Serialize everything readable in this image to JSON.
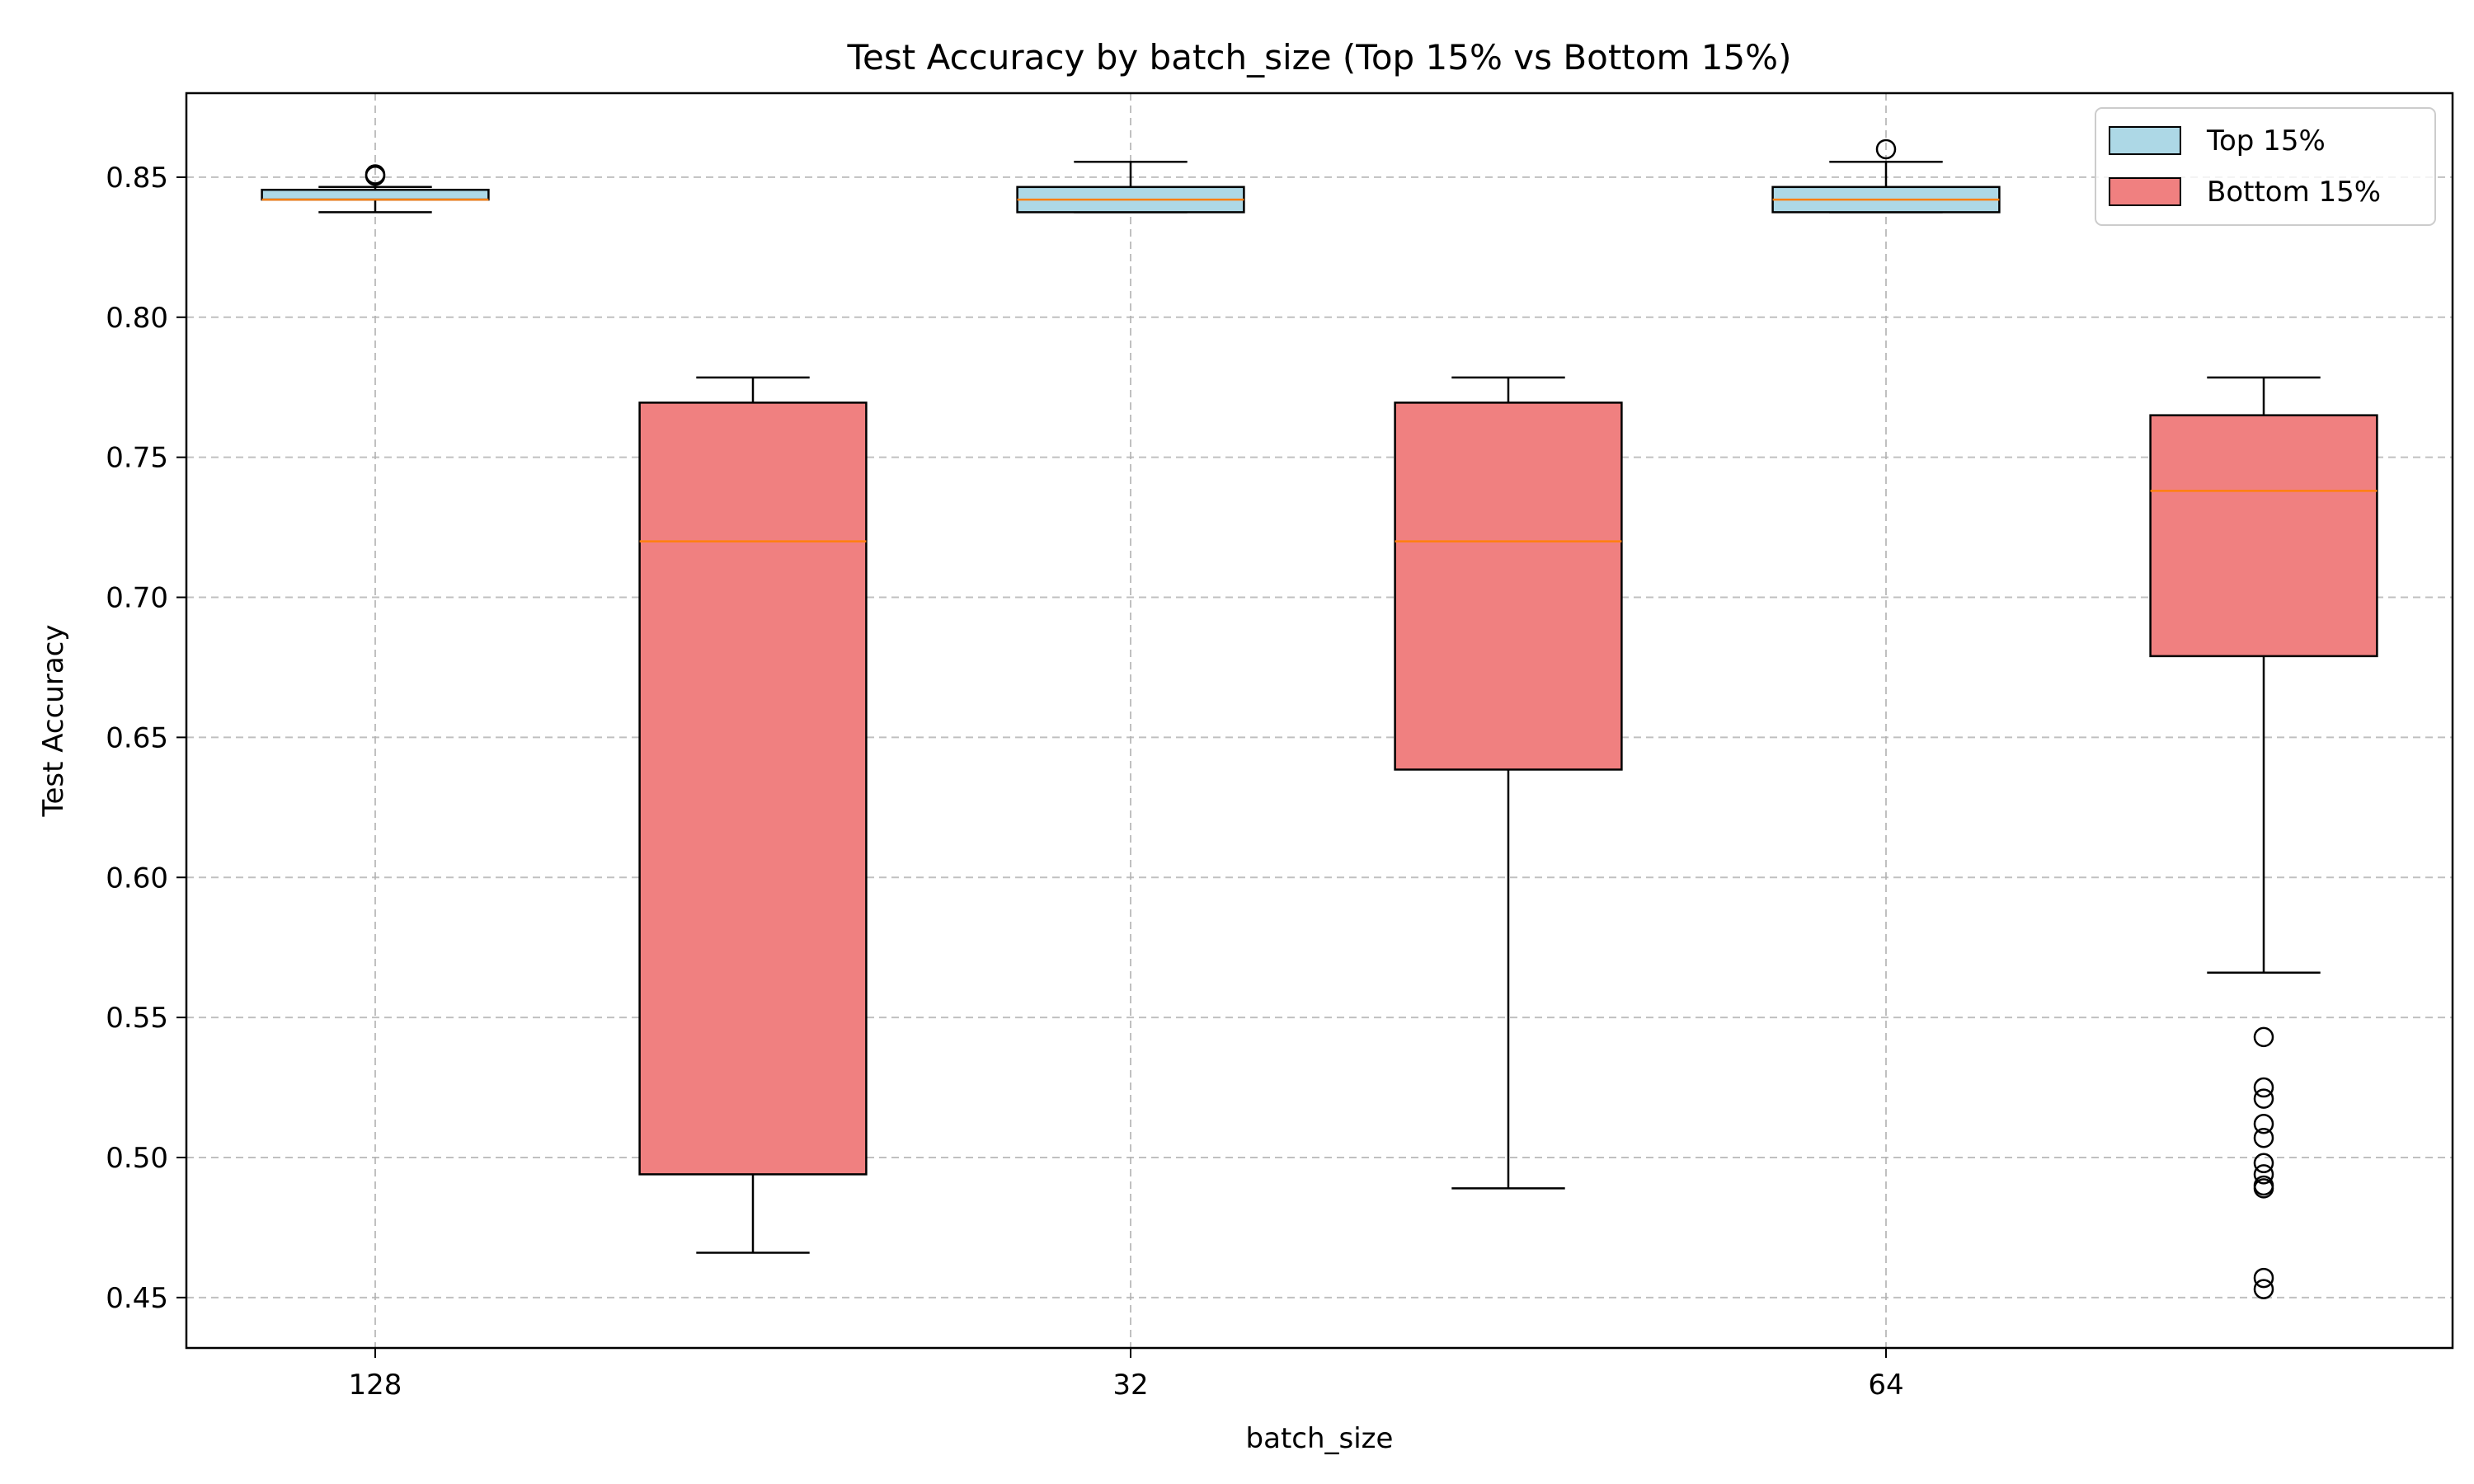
{
  "chart_data": {
    "type": "boxplot",
    "title": "Test Accuracy by batch_size (Top 15% vs Bottom 15%)",
    "xlabel": "batch_size",
    "ylabel": "Test Accuracy",
    "ylim": [
      0.432,
      0.88
    ],
    "yticks": [
      "0.45",
      "0.50",
      "0.55",
      "0.60",
      "0.65",
      "0.70",
      "0.75",
      "0.80",
      "0.85"
    ],
    "x_positions": [
      1,
      1.5,
      2,
      2.5,
      3,
      3.5
    ],
    "xlim": [
      0.75,
      3.75
    ],
    "x_tick_positions": [
      1,
      2,
      3
    ],
    "categories": [
      "128",
      "32",
      "64"
    ],
    "grid": true,
    "legend_position": "top-right",
    "series": [
      {
        "name": "Top 15%",
        "color": "#add8e6",
        "boxes": [
          {
            "category": "128",
            "whislo": 0.8375,
            "q1": 0.842,
            "median": 0.842,
            "q3": 0.8455,
            "whishi": 0.8465,
            "fliers": [
              0.851,
              0.8505
            ]
          },
          {
            "category": "32",
            "whislo": 0.8375,
            "q1": 0.8375,
            "median": 0.842,
            "q3": 0.8465,
            "whishi": 0.8555,
            "fliers": []
          },
          {
            "category": "64",
            "whislo": 0.8375,
            "q1": 0.8375,
            "median": 0.842,
            "q3": 0.8465,
            "whishi": 0.8555,
            "fliers": [
              0.86
            ]
          }
        ]
      },
      {
        "name": "Bottom 15%",
        "color": "#f08080",
        "boxes": [
          {
            "category": "128",
            "whislo": 0.466,
            "q1": 0.494,
            "median": 0.72,
            "q3": 0.7695,
            "whishi": 0.7785,
            "fliers": []
          },
          {
            "category": "32",
            "whislo": 0.489,
            "q1": 0.6385,
            "median": 0.72,
            "q3": 0.7695,
            "whishi": 0.7785,
            "fliers": []
          },
          {
            "category": "64",
            "whislo": 0.566,
            "q1": 0.679,
            "median": 0.738,
            "q3": 0.765,
            "whishi": 0.7785,
            "fliers": [
              0.543,
              0.525,
              0.521,
              0.512,
              0.507,
              0.498,
              0.494,
              0.49,
              0.489,
              0.457,
              0.453
            ]
          }
        ]
      }
    ],
    "median_color": "#ff7f0e"
  }
}
